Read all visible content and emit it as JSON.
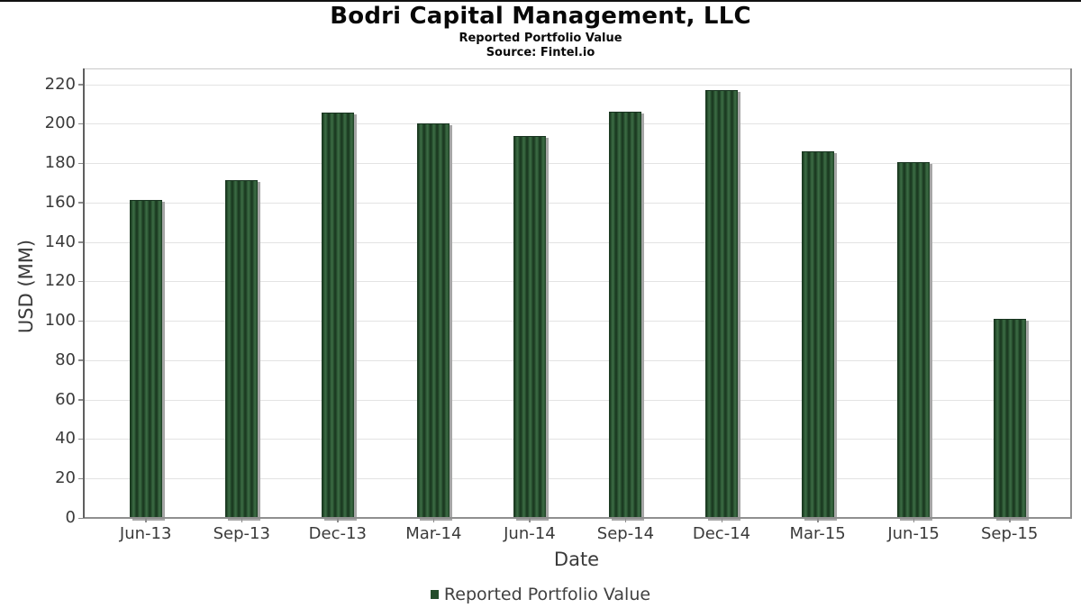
{
  "header": {
    "title": "Bodri Capital Management, LLC",
    "subtitle": "Reported Portfolio Value",
    "source": "Source: Fintel.io"
  },
  "legend": {
    "label": "Reported Portfolio Value",
    "marker_color": "#234c2a"
  },
  "colors": {
    "bar_stripe_dark": "#1c3b22",
    "bar_stripe_mid": "#2d5835",
    "bar_stripe_light": "#3d6c45",
    "bar_shadow": "#a6a6a6",
    "gridline": "#e3e3e3",
    "tick_text": "#3a3a3a",
    "spine_left": "#5f5f5f",
    "spine_bottom": "#8f8f8f",
    "spine_right": "#8f8f8f",
    "spine_top": "#c8c8c8"
  },
  "chart_data": {
    "type": "bar",
    "title": "Bodri Capital Management, LLC",
    "subtitle": "Reported Portfolio Value",
    "source": "Source: Fintel.io",
    "categories": [
      "Jun-13",
      "Sep-13",
      "Dec-13",
      "Mar-14",
      "Jun-14",
      "Sep-14",
      "Dec-14",
      "Mar-15",
      "Jun-15",
      "Sep-15"
    ],
    "series": [
      {
        "name": "Reported Portfolio Value",
        "values": [
          161.5,
          171.4,
          205.8,
          200.0,
          193.9,
          206.1,
          217.1,
          185.9,
          180.3,
          100.9
        ]
      }
    ],
    "xlabel": "Date",
    "ylabel": "USD (MM)",
    "ylim": [
      0,
      228
    ],
    "yticks": [
      0,
      20,
      40,
      60,
      80,
      100,
      120,
      140,
      160,
      180,
      200,
      220
    ],
    "grid": "horizontal",
    "legend_position": "bottom-center",
    "bar_texture": "vertical-stripes"
  }
}
